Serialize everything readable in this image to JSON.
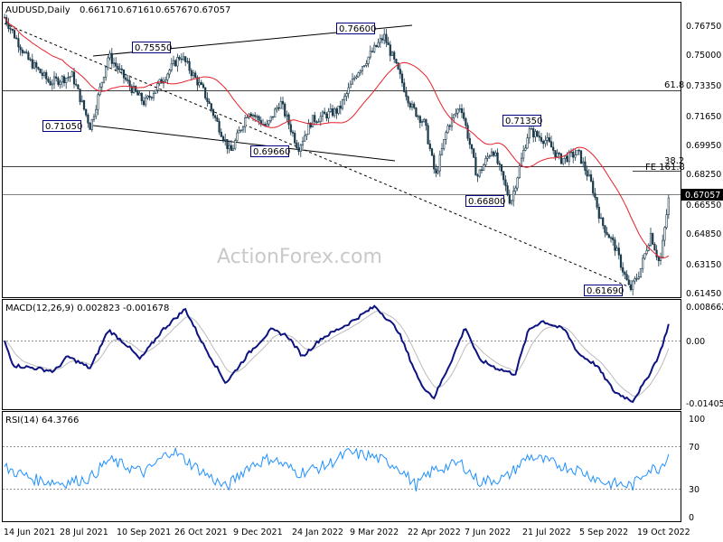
{
  "colors": {
    "candle": "#1b3a4b",
    "ma": "#e8202a",
    "macd": "#0d1380",
    "signal": "#bcbcbc",
    "rsi": "#1e90ff",
    "annotation_box": "#000080"
  },
  "chart_data": [
    {
      "type": "candlestick",
      "header": "AUDUSD,Daily",
      "ohlc_readout": [
        "0.66171",
        "0.67161",
        "0.65767",
        "0.67057"
      ],
      "ylim": [
        0.6125,
        0.7845
      ],
      "y_ticks": [
        "0.76750",
        "0.75000",
        "0.73350",
        "0.71650",
        "0.69950",
        "0.68250",
        "0.66550",
        "0.64850",
        "0.63150",
        "0.61450"
      ],
      "x_ticks": [
        "14 Jun 2021",
        "28 Jul 2021",
        "10 Sep 2021",
        "26 Oct 2021",
        "9 Dec 2021",
        "24 Jan 2022",
        "9 Mar 2022",
        "22 Apr 2022",
        "7 Jun 2022",
        "21 Jul 2022",
        "5 Sep 2022",
        "19 Oct 2022"
      ],
      "last_price": "0.67057",
      "hlines": [
        {
          "value": 0.7305,
          "label": "61.8"
        },
        {
          "value": 0.6865,
          "label": "38.2"
        },
        {
          "value": 0.6706,
          "label": ""
        }
      ],
      "fib_label": "FE 161.8",
      "price_labels": [
        "0.76600",
        "0.75550",
        "0.71350",
        "0.71050",
        "0.69660",
        "0.66800",
        "0.61690"
      ],
      "watermark": "ActionForex.com"
    },
    {
      "type": "line",
      "header": "MACD(12,26,9) 0.002823 -0.001678",
      "y_ticks": [
        "0.008662",
        "0.00",
        "-0.014055"
      ],
      "last_value_label": "0.00"
    },
    {
      "type": "line",
      "header": "RSI(14) 64.3766",
      "y_ticks": [
        "100",
        "70",
        "30",
        "0"
      ]
    }
  ]
}
